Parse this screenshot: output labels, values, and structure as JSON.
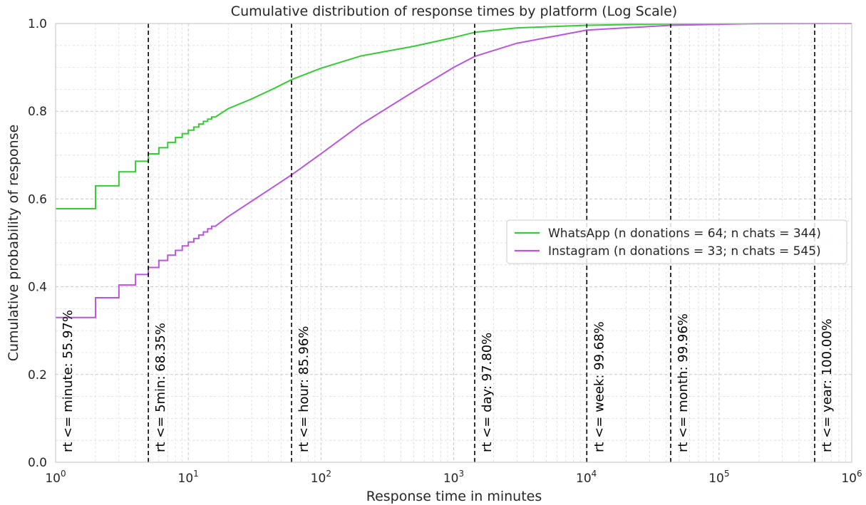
{
  "chart_data": {
    "type": "line",
    "title": "Cumulative distribution of response times by platform (Log Scale)",
    "xlabel": "Response time in minutes",
    "ylabel": "Cumulative probability of response",
    "x_scale": "log",
    "xlim": [
      1,
      1000000
    ],
    "ylim": [
      0,
      1.0
    ],
    "x_ticks": [
      {
        "base": "10",
        "exp": "0",
        "value": 1
      },
      {
        "base": "10",
        "exp": "1",
        "value": 10
      },
      {
        "base": "10",
        "exp": "2",
        "value": 100
      },
      {
        "base": "10",
        "exp": "3",
        "value": 1000
      },
      {
        "base": "10",
        "exp": "4",
        "value": 10000
      },
      {
        "base": "10",
        "exp": "5",
        "value": 100000
      },
      {
        "base": "10",
        "exp": "6",
        "value": 1000000
      }
    ],
    "y_ticks": [
      {
        "label": "0.0",
        "value": 0
      },
      {
        "label": "0.2",
        "value": 0.2
      },
      {
        "label": "0.4",
        "value": 0.4
      },
      {
        "label": "0.6",
        "value": 0.6
      },
      {
        "label": "0.8",
        "value": 0.8
      },
      {
        "label": "1.0",
        "value": 1.0
      }
    ],
    "grid": true,
    "legend_position": "center-right",
    "thresholds": [
      {
        "x": 1,
        "label": "rt <= minute: 55.97%"
      },
      {
        "x": 5,
        "label": "rt <= 5min: 68.35%"
      },
      {
        "x": 60,
        "label": "rt <= hour: 85.96%"
      },
      {
        "x": 1440,
        "label": "rt <= day: 97.80%"
      },
      {
        "x": 10080,
        "label": "rt <= week: 99.68%"
      },
      {
        "x": 43200,
        "label": "rt <= month: 99.96%"
      },
      {
        "x": 525600,
        "label": "rt <= year: 100.00%"
      }
    ],
    "series": [
      {
        "name": "WhatsApp (n donations = 64; n chats = 344)",
        "color": "#33cc33",
        "steps": [
          [
            1,
            0.578
          ],
          [
            2,
            0.63
          ],
          [
            3,
            0.662
          ],
          [
            4,
            0.686
          ],
          [
            5,
            0.703
          ],
          [
            6,
            0.717
          ],
          [
            7,
            0.729
          ],
          [
            8,
            0.74
          ],
          [
            9,
            0.749
          ],
          [
            10,
            0.757
          ],
          [
            11,
            0.764
          ],
          [
            12,
            0.771
          ],
          [
            13,
            0.777
          ],
          [
            14,
            0.782
          ],
          [
            15,
            0.787
          ]
        ],
        "points": [
          [
            20,
            0.806
          ],
          [
            30,
            0.828
          ],
          [
            45,
            0.853
          ],
          [
            60,
            0.872
          ],
          [
            100,
            0.898
          ],
          [
            200,
            0.926
          ],
          [
            500,
            0.948
          ],
          [
            1000,
            0.968
          ],
          [
            1440,
            0.98
          ],
          [
            3000,
            0.99
          ],
          [
            10080,
            0.996
          ],
          [
            43200,
            0.999
          ],
          [
            1000000,
            1.0
          ]
        ]
      },
      {
        "name": "Instagram (n donations = 33; n chats = 545)",
        "color": "#bb55dd",
        "steps": [
          [
            1,
            0.33
          ],
          [
            2,
            0.375
          ],
          [
            3,
            0.404
          ],
          [
            4,
            0.428
          ],
          [
            5,
            0.444
          ],
          [
            6,
            0.46
          ],
          [
            7,
            0.472
          ],
          [
            8,
            0.483
          ],
          [
            9,
            0.493
          ],
          [
            10,
            0.502
          ],
          [
            11,
            0.51
          ],
          [
            12,
            0.518
          ],
          [
            13,
            0.525
          ],
          [
            14,
            0.532
          ],
          [
            15,
            0.538
          ]
        ],
        "points": [
          [
            20,
            0.56
          ],
          [
            30,
            0.595
          ],
          [
            45,
            0.63
          ],
          [
            60,
            0.655
          ],
          [
            100,
            0.703
          ],
          [
            200,
            0.77
          ],
          [
            500,
            0.845
          ],
          [
            1000,
            0.9
          ],
          [
            1440,
            0.925
          ],
          [
            3000,
            0.955
          ],
          [
            10080,
            0.985
          ],
          [
            43200,
            0.996
          ],
          [
            200000,
            1.0
          ],
          [
            1000000,
            1.0
          ]
        ]
      }
    ]
  }
}
